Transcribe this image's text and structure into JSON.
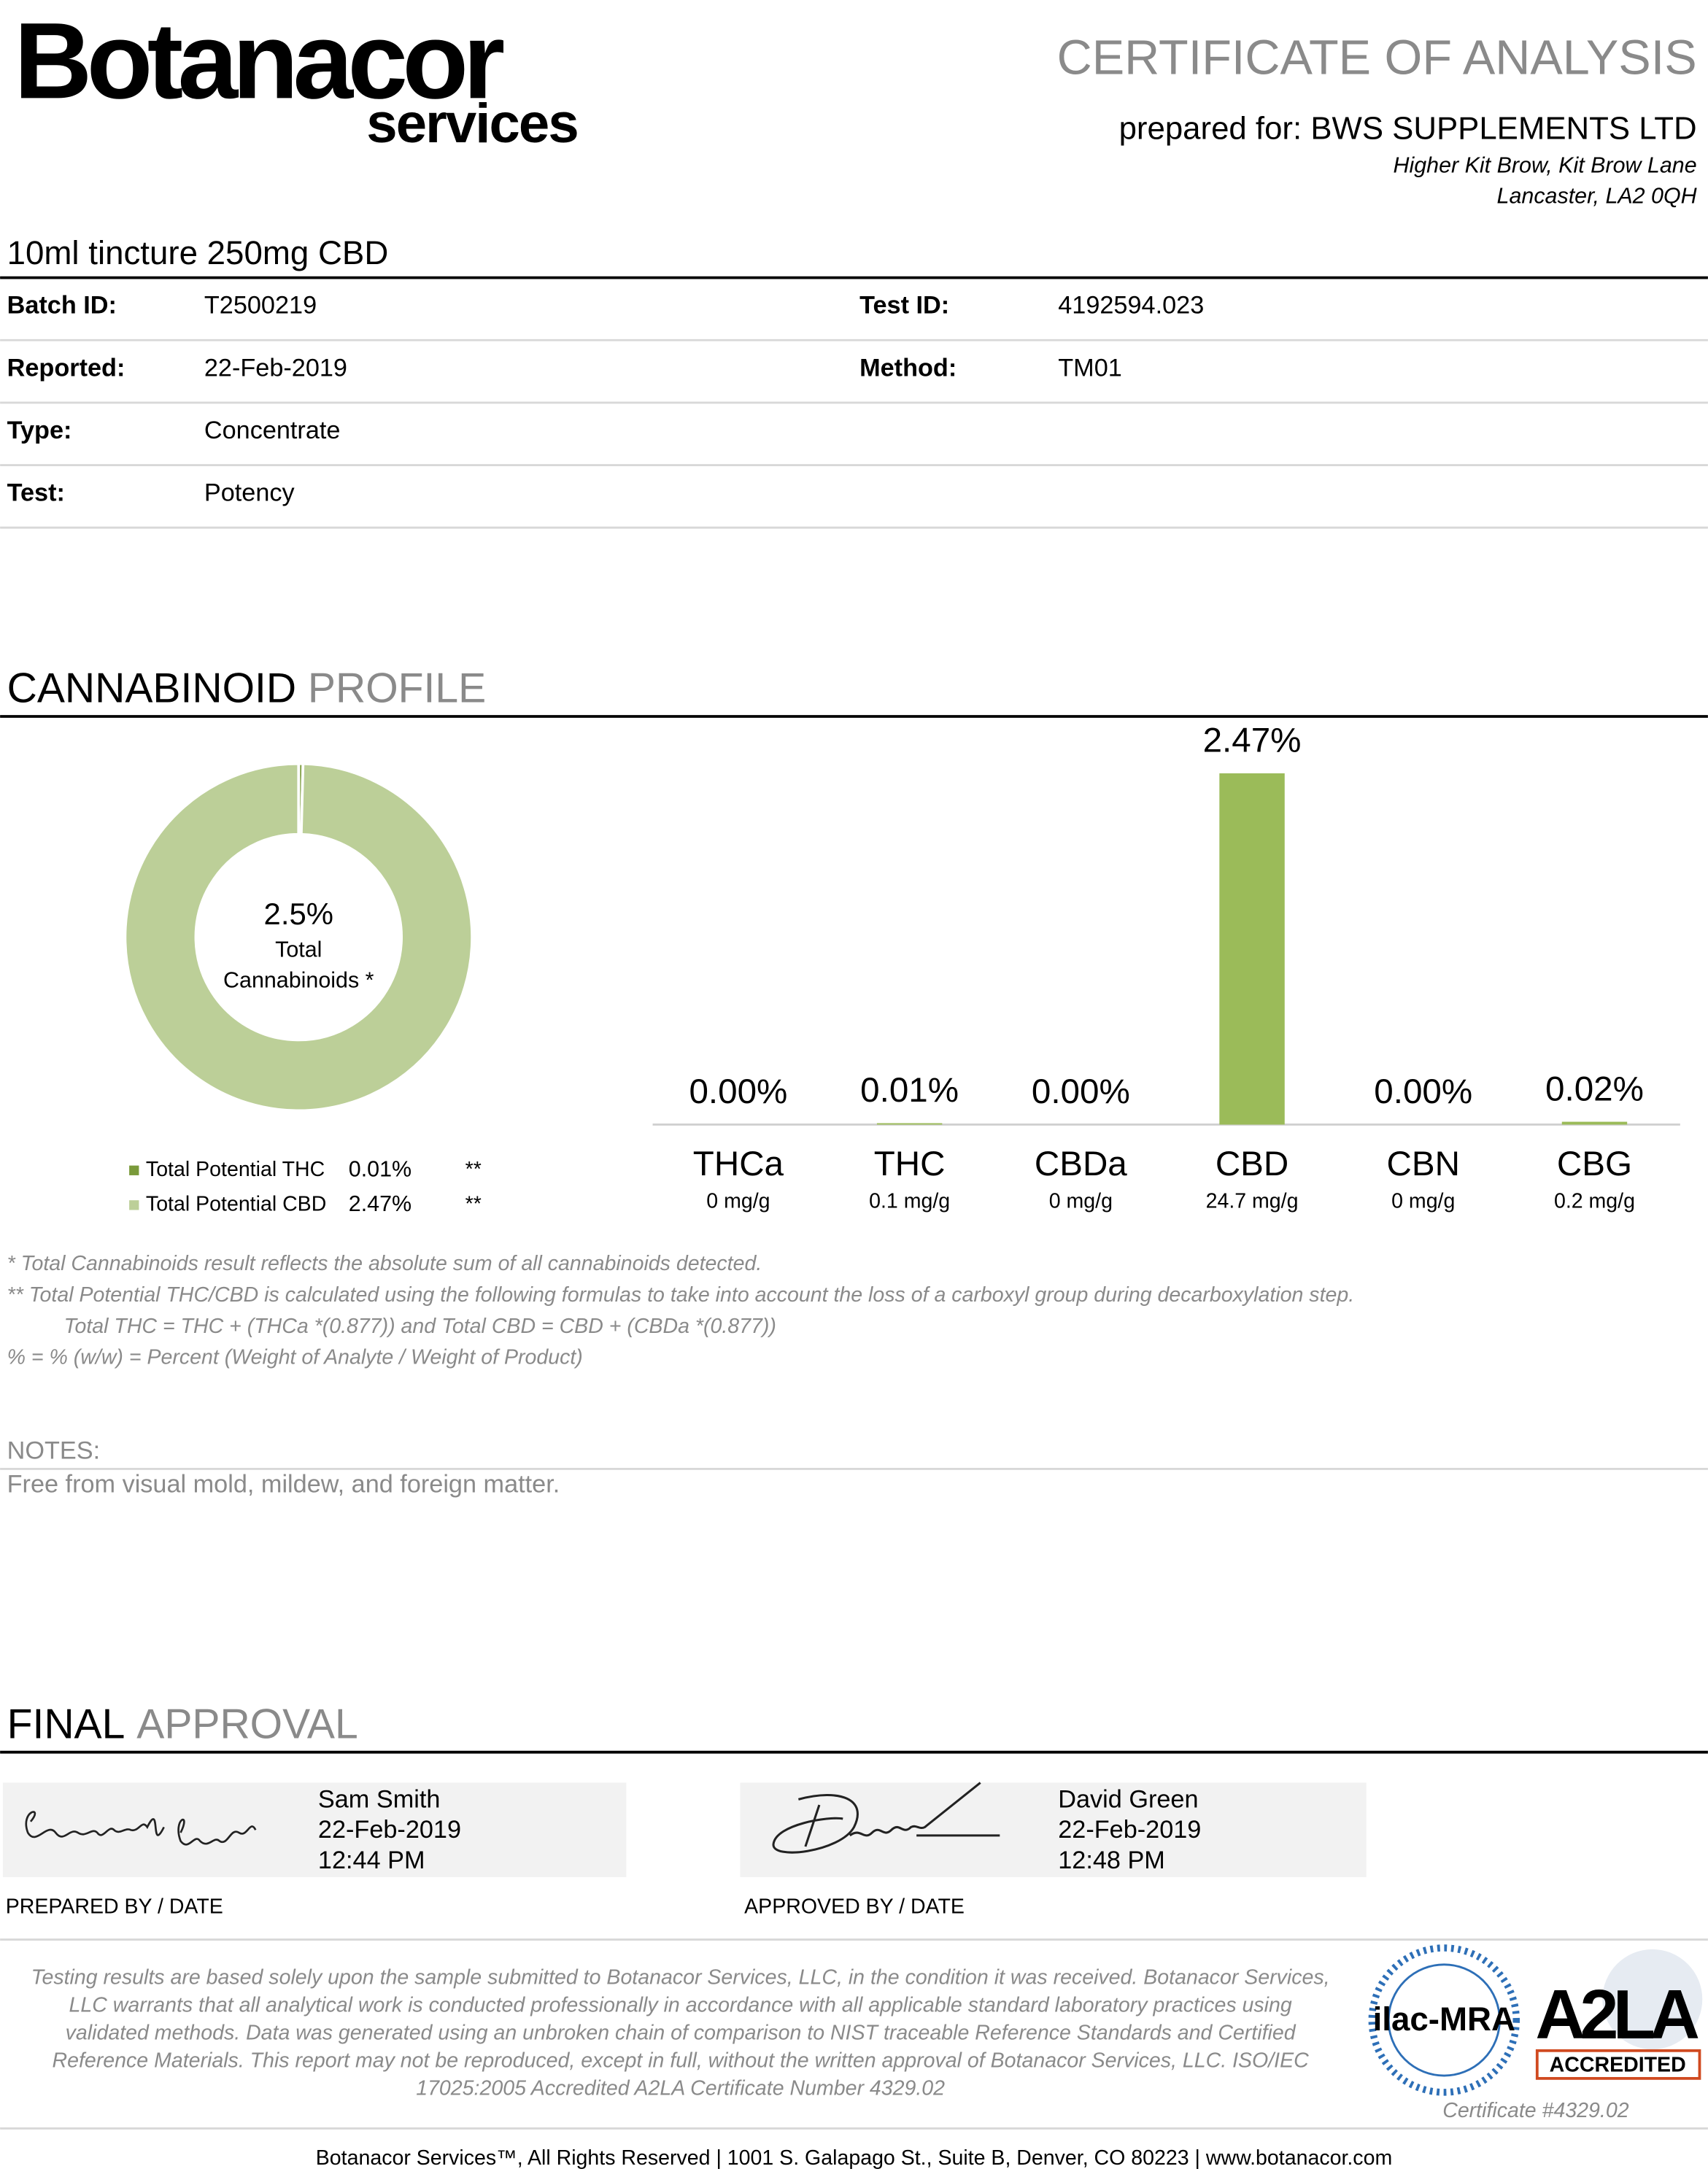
{
  "header": {
    "logo_main": "Botanacor",
    "logo_sub": "services",
    "title": "CERTIFICATE OF ANALYSIS",
    "prepared_for": "prepared for: BWS SUPPLEMENTS LTD",
    "address_1": "Higher Kit Brow, Kit Brow Lane",
    "address_2": "Lancaster, LA2 0QH"
  },
  "product": "10ml tincture 250mg CBD",
  "info": {
    "rows": [
      [
        "Batch ID:",
        "T2500219",
        "Test ID:",
        "4192594.023"
      ],
      [
        "Reported:",
        "22-Feb-2019",
        "Method:",
        "TM01"
      ],
      [
        "Type:",
        "Concentrate"
      ],
      [
        "Test:",
        "Potency"
      ]
    ]
  },
  "profile": {
    "title_dark": "CANNABINOID",
    "title_light": "PROFILE"
  },
  "chart_data": [
    {
      "type": "pie",
      "total": 2.5,
      "total_label": "2.5%",
      "center_line_1": "Total",
      "center_line_2": "Cannabinoids *",
      "categories": [
        "Total Potential THC",
        "Total Potential CBD"
      ],
      "values": [
        0.01,
        2.47
      ],
      "value_labels": [
        "0.01%",
        "2.47%"
      ],
      "colors": [
        "#7a9a3a",
        "#bccf98"
      ],
      "legend_note": "**"
    },
    {
      "type": "bar",
      "categories": [
        "THCa",
        "THC",
        "CBDa",
        "CBD",
        "CBN",
        "CBG"
      ],
      "values": [
        0,
        0.01,
        0,
        2.47,
        0,
        0.02
      ],
      "value_labels": [
        "0.00%",
        "0.01%",
        "0.00%",
        "2.47%",
        "0.00%",
        "0.02%"
      ],
      "sublabels": [
        "0 mg/g",
        "0.1 mg/g",
        "0 mg/g",
        "24.7 mg/g",
        "0 mg/g",
        "0.2 mg/g"
      ],
      "color": "#9bbb59",
      "ylim": [
        0,
        2.47
      ]
    }
  ],
  "footnotes": [
    "* Total Cannabinoids result reflects the absolute sum of all cannabinoids detected.",
    "** Total Potential THC/CBD is calculated using the following formulas to take into account the loss of a carboxyl group during decarboxylation step.",
    "Total THC = THC + (THCa *(0.877)) and Total CBD = CBD + (CBDa *(0.877))",
    "% = % (w/w) = Percent (Weight of Analyte / Weight of Product)"
  ],
  "notes": {
    "label": "NOTES:",
    "text": "Free from visual mold, mildew, and foreign matter."
  },
  "approval": {
    "title_dark": "FINAL",
    "title_light": "APPROVAL",
    "prepared": {
      "name": "Sam Smith",
      "date": "22-Feb-2019",
      "time": "12:44 PM",
      "caption": "PREPARED BY / DATE"
    },
    "approved": {
      "name": "David Green",
      "date": "22-Feb-2019",
      "time": "12:48 PM",
      "caption": "APPROVED BY / DATE"
    }
  },
  "disclaimer": [
    "Testing results are based solely upon the sample submitted to Botanacor Services, LLC, in the condition it was received. Botanacor Services,",
    "LLC warrants that all analytical work is conducted professionally in accordance with all applicable standard laboratory practices using",
    "validated methods. Data was generated using an unbroken chain of comparison to NIST traceable Reference Standards and Certified",
    "Reference Materials. This report may not be reproduced, except in full, without the written approval of Botanacor Services, LLC. ISO/IEC",
    "17025:2005 Accredited A2LA Certificate Number 4329.02"
  ],
  "logos": {
    "ilac": "ilac-MRA",
    "a2la": "A2LA",
    "accredited": "ACCREDITED",
    "certificate": "Certificate #4329.02"
  },
  "footer": "Botanacor Services™, All Rights Reserved  | 1001 S. Galapago St., Suite B, Denver, CO 80223  |  www.botanacor.com"
}
